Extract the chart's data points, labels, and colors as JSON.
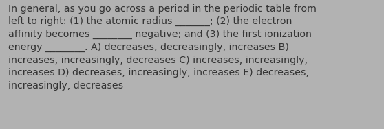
{
  "text": "In general, as you go across a period in the periodic table from\nleft to right: (1) the atomic radius _______; (2) the electron\naffinity becomes ________ negative; and (3) the first ionization\nenergy ________. A) decreases, decreasingly, increases B)\nincreases, increasingly, decreases C) increases, increasingly,\nincreases D) decreases, increasingly, increases E) decreases,\nincreasingly, decreases",
  "background_color": "#b2b2b2",
  "text_color": "#333333",
  "font_size": 10.2,
  "fig_width": 5.58,
  "fig_height": 1.88
}
